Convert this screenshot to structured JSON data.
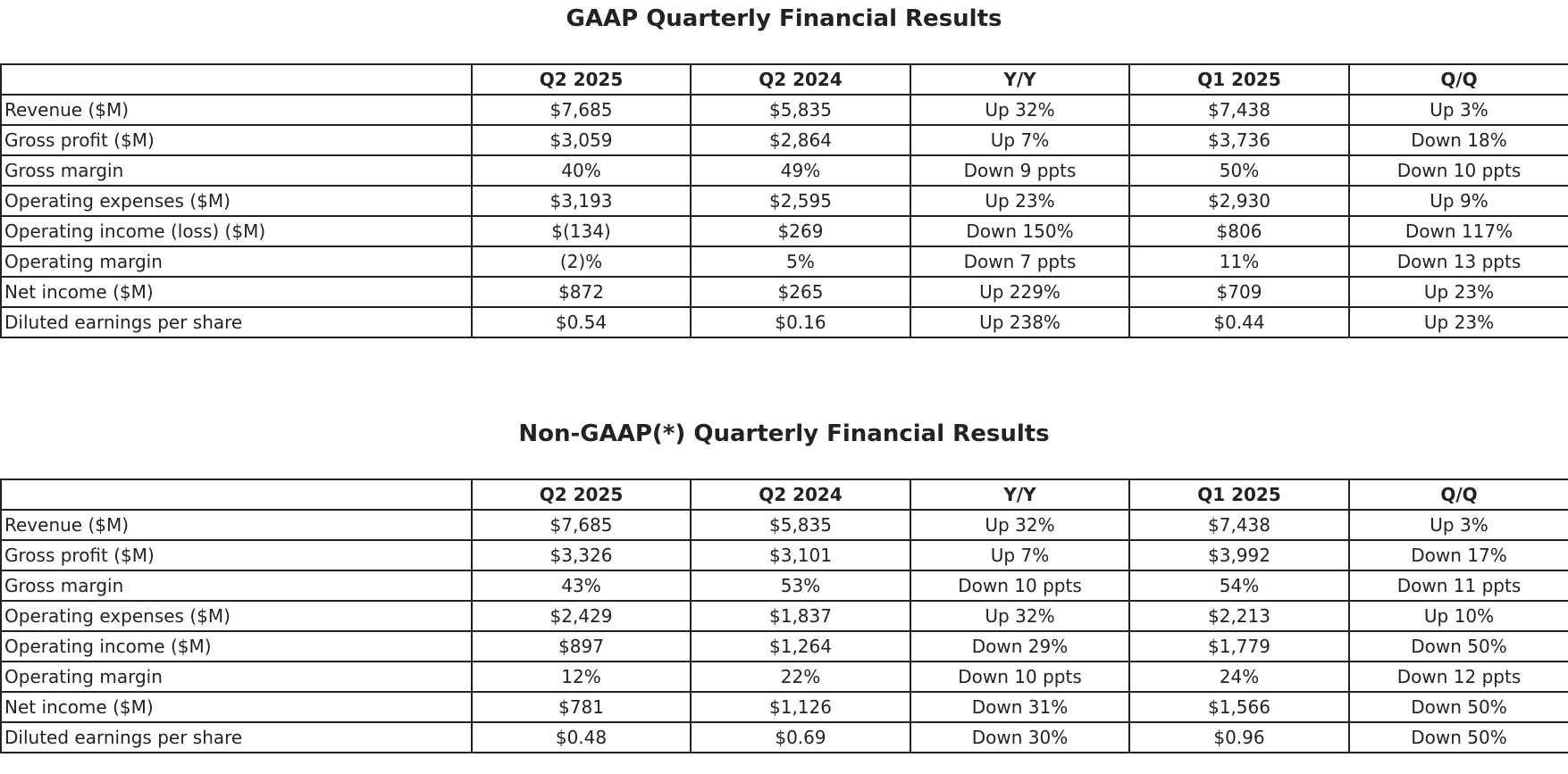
{
  "gaap": {
    "title": "GAAP Quarterly Financial Results",
    "headers": [
      "",
      "Q2 2025",
      "Q2 2024",
      "Y/Y",
      "Q1 2025",
      "Q/Q"
    ],
    "rows": [
      [
        "Revenue ($M)",
        "$7,685",
        "$5,835",
        "Up 32%",
        "$7,438",
        "Up 3%"
      ],
      [
        "Gross profit ($M)",
        "$3,059",
        "$2,864",
        "Up 7%",
        "$3,736",
        "Down 18%"
      ],
      [
        "Gross margin",
        "40%",
        "49%",
        "Down 9 ppts",
        "50%",
        "Down 10 ppts"
      ],
      [
        "Operating expenses ($M)",
        "$3,193",
        "$2,595",
        "Up 23%",
        "$2,930",
        "Up 9%"
      ],
      [
        "Operating income (loss) ($M)",
        "$(134)",
        "$269",
        "Down 150%",
        "$806",
        "Down 117%"
      ],
      [
        "Operating margin",
        "(2)%",
        "5%",
        "Down 7 ppts",
        "11%",
        "Down 13 ppts"
      ],
      [
        "Net income ($M)",
        "$872",
        "$265",
        "Up 229%",
        "$709",
        "Up 23%"
      ],
      [
        "Diluted earnings per share",
        "$0.54",
        "$0.16",
        "Up 238%",
        "$0.44",
        "Up 23%"
      ]
    ]
  },
  "nongaap": {
    "title": "Non-GAAP(*) Quarterly Financial Results",
    "headers": [
      "",
      "Q2 2025",
      "Q2 2024",
      "Y/Y",
      "Q1 2025",
      "Q/Q"
    ],
    "rows": [
      [
        "Revenue ($M)",
        "$7,685",
        "$5,835",
        "Up 32%",
        "$7,438",
        "Up 3%"
      ],
      [
        "Gross profit ($M)",
        "$3,326",
        "$3,101",
        "Up 7%",
        "$3,992",
        "Down 17%"
      ],
      [
        "Gross margin",
        "43%",
        "53%",
        "Down 10 ppts",
        "54%",
        "Down 11 ppts"
      ],
      [
        "Operating expenses ($M)",
        "$2,429",
        "$1,837",
        "Up 32%",
        "$2,213",
        "Up 10%"
      ],
      [
        "Operating income ($M)",
        "$897",
        "$1,264",
        "Down 29%",
        "$1,779",
        "Down 50%"
      ],
      [
        "Operating margin",
        "12%",
        "22%",
        "Down 10 ppts",
        "24%",
        "Down 12 ppts"
      ],
      [
        "Net income ($M)",
        "$781",
        "$1,126",
        "Down 31%",
        "$1,566",
        "Down 50%"
      ],
      [
        "Diluted earnings per share",
        "$0.48",
        "$0.69",
        "Down 30%",
        "$0.96",
        "Down 50%"
      ]
    ]
  }
}
